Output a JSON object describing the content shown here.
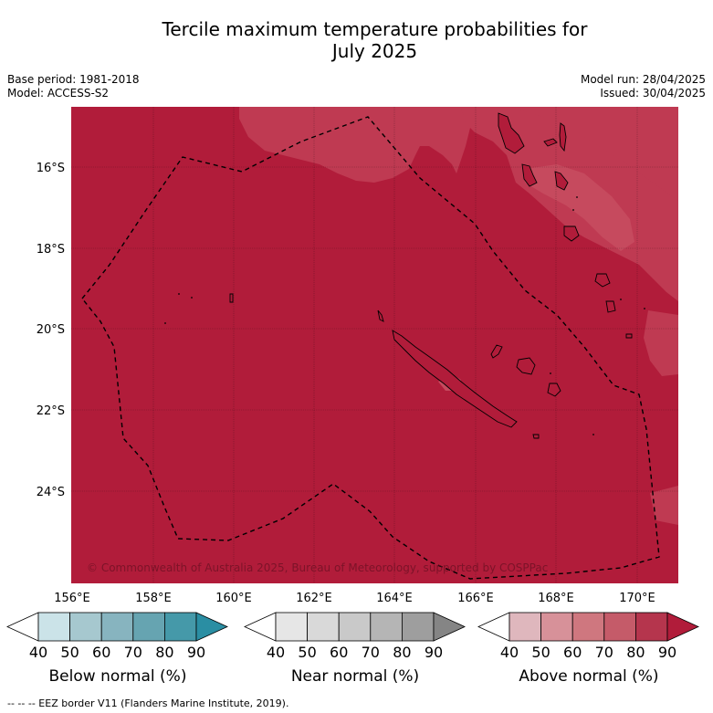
{
  "title_line1": "Tercile maximum temperature probabilities for",
  "title_line2": "July 2025",
  "meta": {
    "base_period": "Base period: 1981-2018",
    "model": "Model: ACCESS-S2",
    "model_run": "Model run: 28/04/2025",
    "issued": "Issued: 30/04/2025"
  },
  "map": {
    "lon_labels": [
      "156°E",
      "158°E",
      "160°E",
      "162°E",
      "164°E",
      "166°E",
      "168°E",
      "170°E"
    ],
    "lat_labels": [
      "16°S",
      "18°S",
      "20°S",
      "22°S",
      "24°S"
    ],
    "copyright": "© Commonwealth of Australia 2025, Bureau of Meteorology, supported by COSPPac",
    "colors": {
      "above_80": "#b11c3a",
      "above_70": "#bf3a52",
      "land_outline": "#000000",
      "eez_line": "#000000"
    }
  },
  "colorbars": [
    {
      "label": "Below normal (%)",
      "ticks": [
        "40",
        "50",
        "60",
        "70",
        "80",
        "90"
      ],
      "colors": [
        "#ffffff",
        "#cbe3e8",
        "#a6c8cf",
        "#87b4bf",
        "#66a4b1",
        "#4599a9",
        "#2a8ea3"
      ]
    },
    {
      "label": "Near normal (%)",
      "ticks": [
        "40",
        "50",
        "60",
        "70",
        "80",
        "90"
      ],
      "colors": [
        "#ffffff",
        "#e6e6e6",
        "#d9d9d9",
        "#c9c9c9",
        "#b5b5b5",
        "#9e9e9e",
        "#858585"
      ]
    },
    {
      "label": "Above normal (%)",
      "ticks": [
        "40",
        "50",
        "60",
        "70",
        "80",
        "90"
      ],
      "colors": [
        "#ffffff",
        "#dfb7bd",
        "#d79199",
        "#cf777f",
        "#c55b69",
        "#b5354d",
        "#b11c3a"
      ]
    }
  ],
  "footnote": "-- -- -- EEZ border V11 (Flanders Marine Institute, 2019)."
}
